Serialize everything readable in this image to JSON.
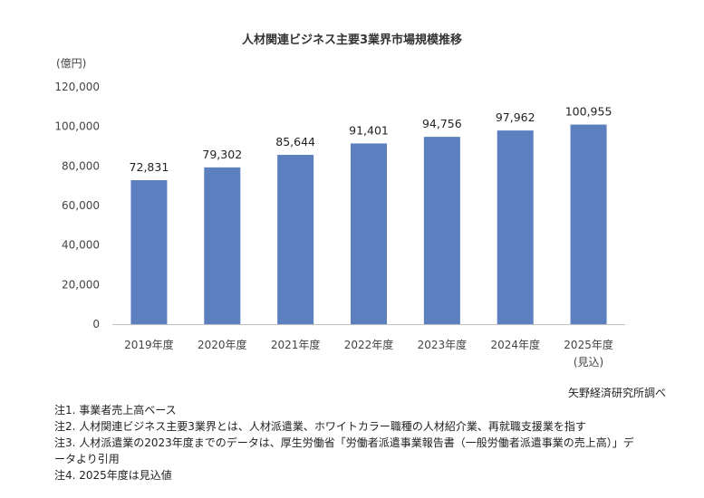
{
  "chart_data": {
    "type": "bar",
    "title": "人材関連ビジネス主要3業界市場規模推移",
    "ylabel": "(億円)",
    "xlabel": "",
    "categories": [
      "2019年度",
      "2020年度",
      "2021年度",
      "2022年度",
      "2023年度",
      "2024年度",
      "2025年度"
    ],
    "category_sublabels": [
      "",
      "",
      "",
      "",
      "",
      "",
      "(見込)"
    ],
    "values": [
      72831,
      79302,
      85644,
      91401,
      94756,
      97962,
      100955
    ],
    "value_labels": [
      "72,831",
      "79,302",
      "85,644",
      "91,401",
      "94,756",
      "97,962",
      "100,955"
    ],
    "yticks": [
      0,
      20000,
      40000,
      60000,
      80000,
      100000,
      120000
    ],
    "ytick_labels": [
      "0",
      "20,000",
      "40,000",
      "60,000",
      "80,000",
      "100,000",
      "120,000"
    ],
    "ylim": [
      0,
      120000
    ],
    "grid": false,
    "bar_color": "#5b7fbf"
  },
  "source": "矢野経済研究所調べ",
  "notes": [
    "注1.  事業者売上高ベース",
    "注2.  人材関連ビジネス主要3業界とは、人材派遣業、ホワイトカラー職種の人材紹介業、再就職支援業を指す",
    "注3.  人材派遣業の2023年度までのデータは、厚生労働省「労働者派遣事業報告書（一般労働者派遣事業の売上高）」データより引用",
    "注4.  2025年度は見込値"
  ]
}
